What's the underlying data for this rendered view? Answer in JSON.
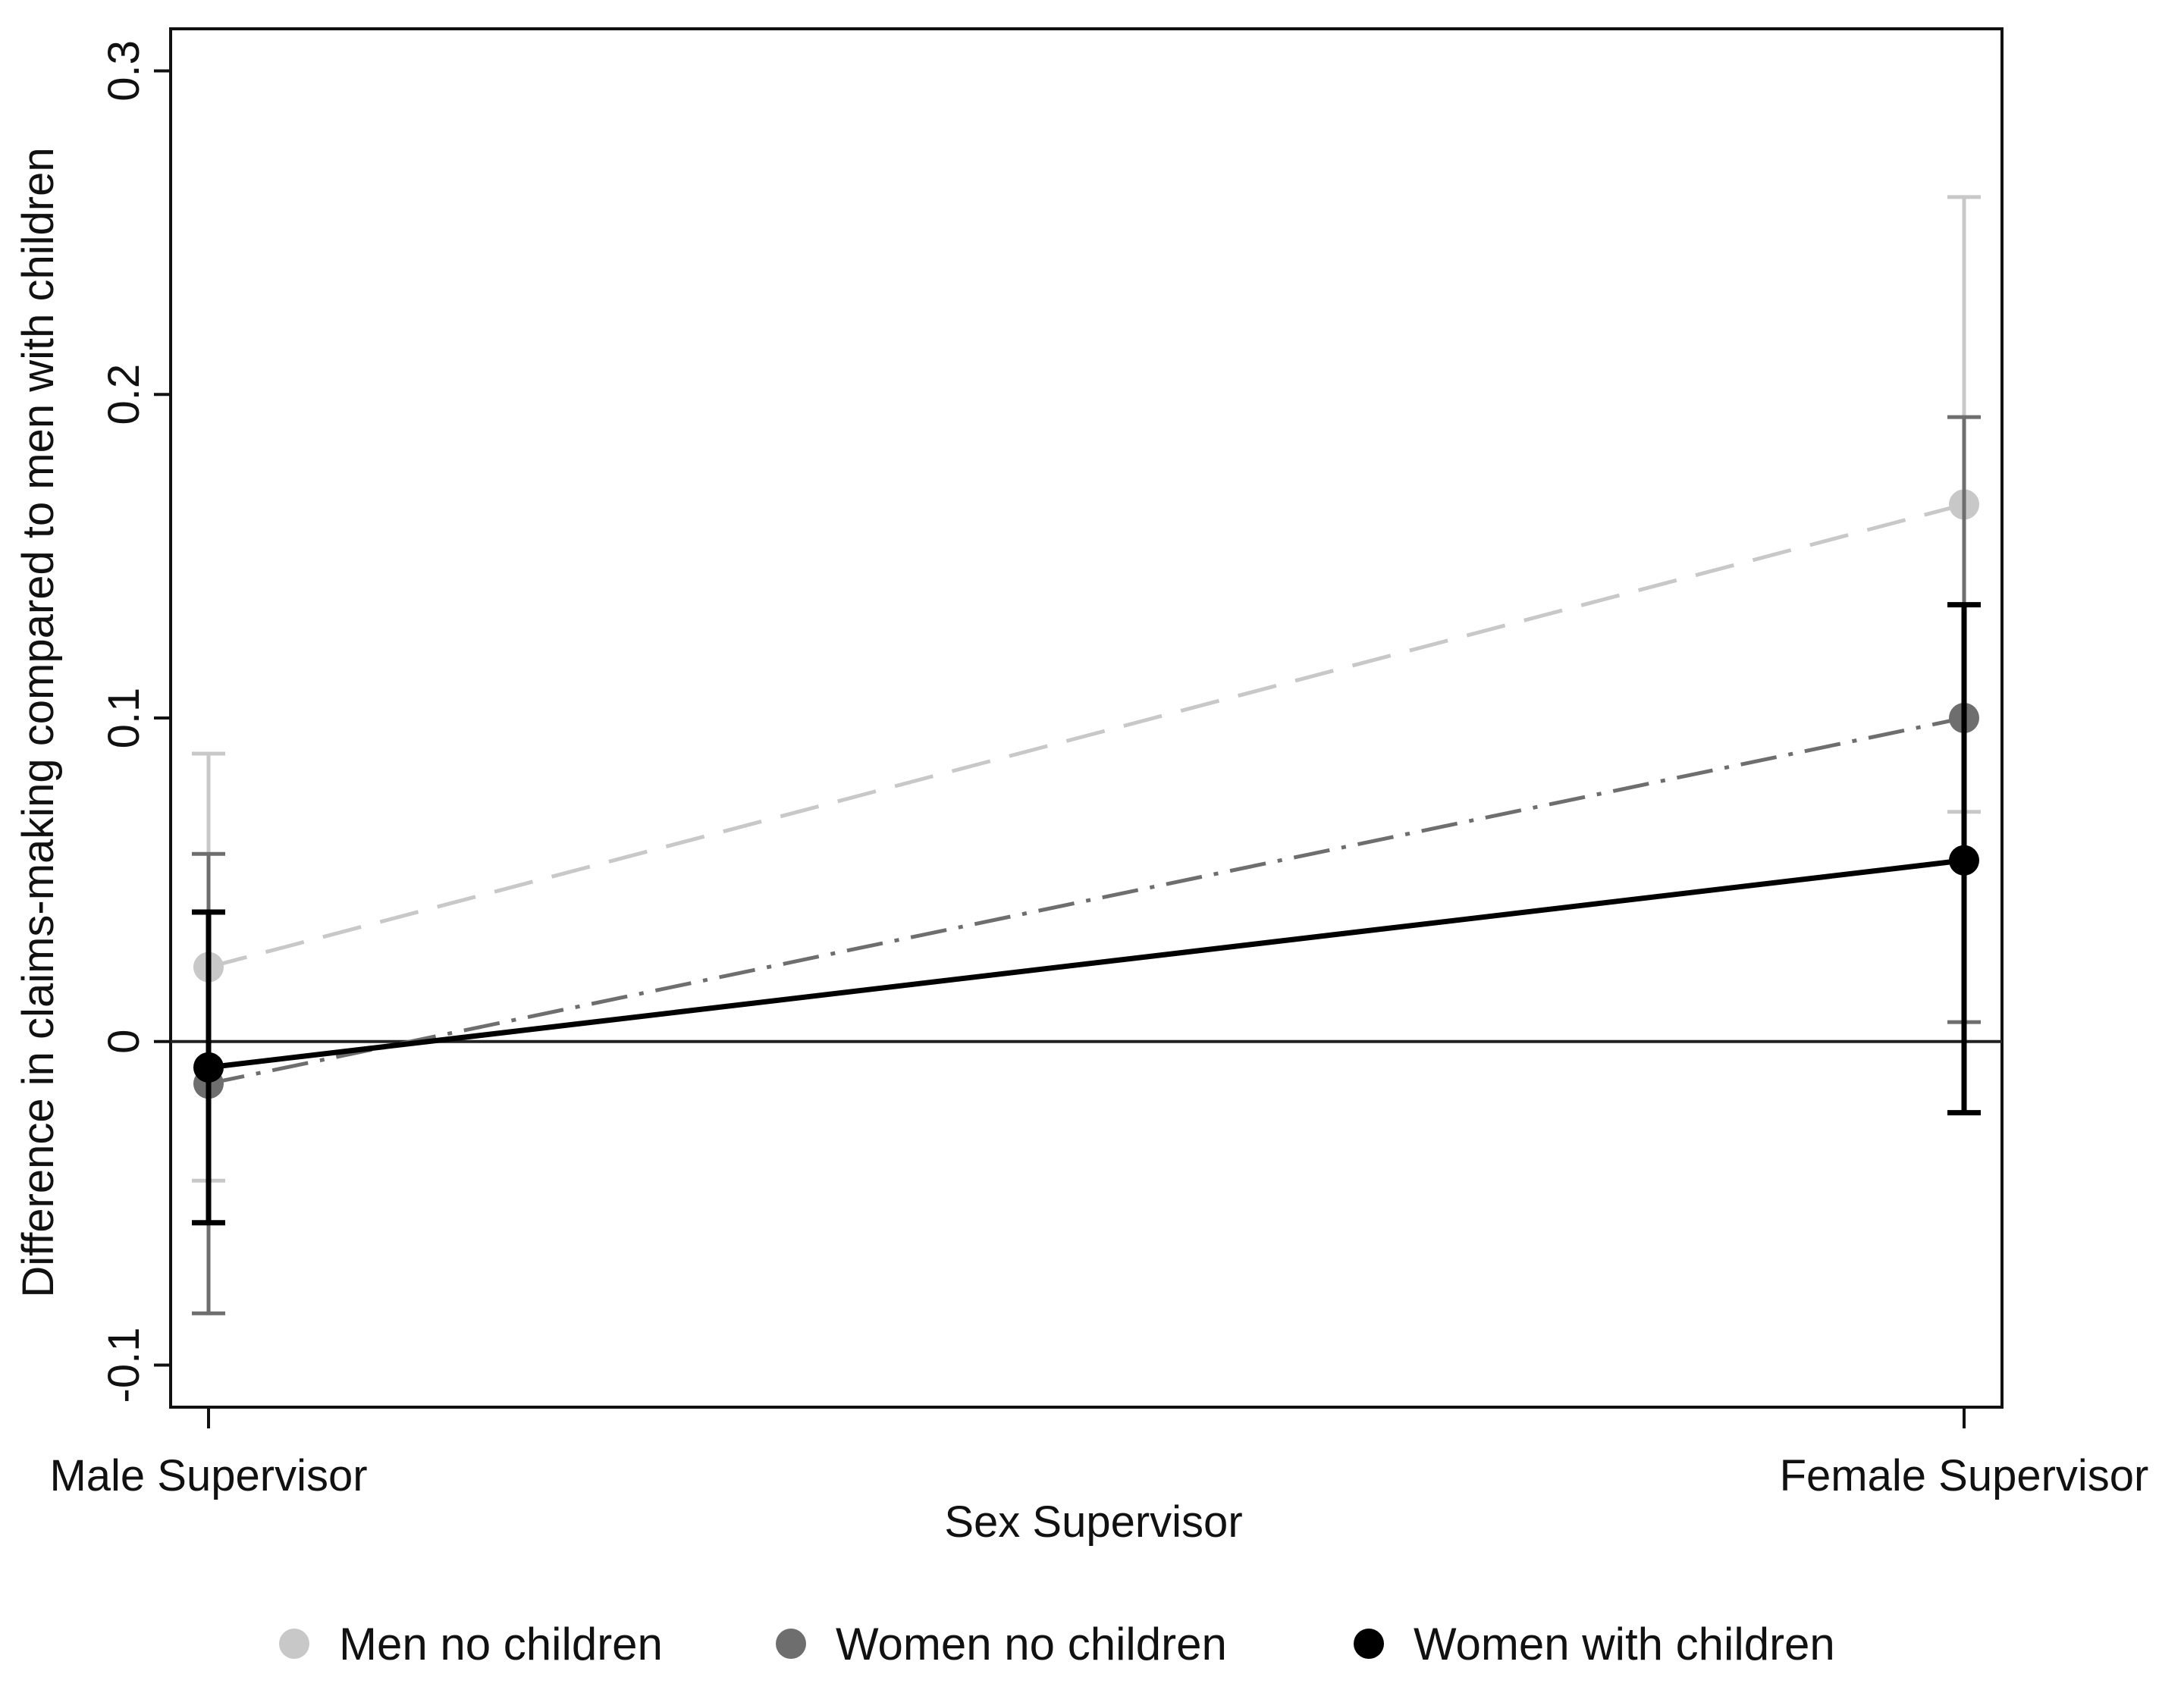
{
  "chart_data": {
    "type": "line",
    "title": "",
    "xlabel": "Sex Supervisor",
    "ylabel": "Difference in claims-making compared to men with children",
    "categories": [
      "Male Supervisor",
      "Female Supervisor"
    ],
    "ylim": [
      -0.113,
      0.313
    ],
    "yticks": [
      {
        "value": -0.1,
        "label": "-0.1"
      },
      {
        "value": 0,
        "label": "0"
      },
      {
        "value": 0.1,
        "label": "0.1"
      },
      {
        "value": 0.2,
        "label": "0.2"
      },
      {
        "value": 0.3,
        "label": "0.3"
      }
    ],
    "reference_line": 0,
    "legend_position": "bottom",
    "series": [
      {
        "name": "Men no children",
        "color": "#c8c8c8",
        "line_style": "dashed",
        "values": [
          0.023,
          0.166
        ],
        "ci_lower": [
          -0.043,
          0.071
        ],
        "ci_upper": [
          0.089,
          0.261
        ]
      },
      {
        "name": "Women no children",
        "color": "#6e6e6e",
        "line_style": "dash-dot",
        "values": [
          -0.013,
          0.1
        ],
        "ci_lower": [
          -0.084,
          0.006
        ],
        "ci_upper": [
          0.058,
          0.193
        ]
      },
      {
        "name": "Women with children",
        "color": "#000000",
        "line_style": "solid",
        "values": [
          -0.008,
          0.056
        ],
        "ci_lower": [
          -0.056,
          -0.022
        ],
        "ci_upper": [
          0.04,
          0.135
        ]
      }
    ]
  }
}
